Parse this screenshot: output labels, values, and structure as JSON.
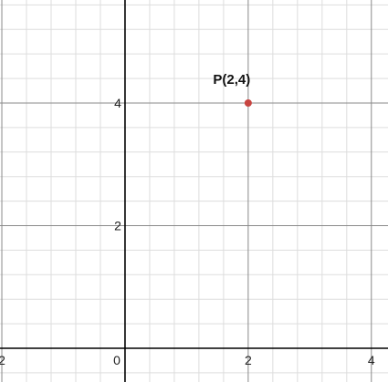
{
  "chart_data": {
    "type": "scatter",
    "title": "",
    "xlabel": "",
    "ylabel": "",
    "xlim": [
      -2.03,
      4.27
    ],
    "ylim": [
      -0.55,
      5.68
    ],
    "grid": true,
    "minor_grid_step": 0.4,
    "major_grid_step": 2,
    "x_tick_labels": [
      {
        "value": -2,
        "label": "2"
      },
      {
        "value": 0,
        "label": "0"
      },
      {
        "value": 2,
        "label": "2"
      },
      {
        "value": 4,
        "label": "4"
      }
    ],
    "y_tick_labels": [
      {
        "value": 2,
        "label": "2"
      },
      {
        "value": 4,
        "label": "4"
      }
    ],
    "points": [
      {
        "x": 2,
        "y": 4,
        "label": "P(2,4)",
        "color": "#c74440"
      }
    ]
  },
  "colors": {
    "background": "#ffffff",
    "minor_grid": "#dddddd",
    "major_grid": "#8a8a8a",
    "axis": "#000000",
    "point": "#c74440"
  }
}
